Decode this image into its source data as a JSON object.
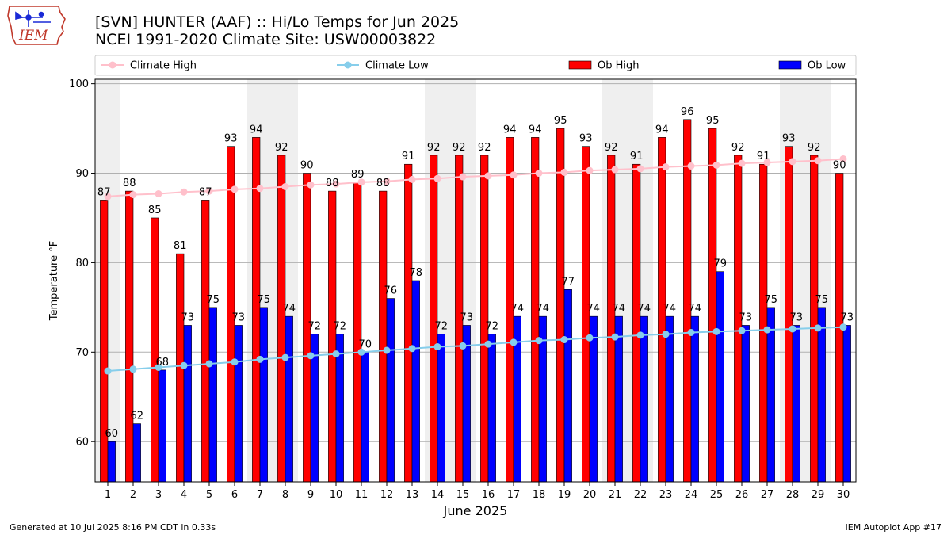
{
  "title_line1": "[SVN] HUNTER (AAF) :: Hi/Lo Temps for Jun 2025",
  "title_line2": "NCEI 1991-2020 Climate Site: USW00003822",
  "logo_text": "IEM",
  "footer_left": "Generated at 10 Jul 2025 8:16 PM CDT in 0.33s",
  "footer_right": "IEM Autoplot App #17",
  "colors": {
    "ob_high": "#ff0000",
    "ob_low": "#0000ff",
    "climate_high": "#ffc0cb",
    "climate_low": "#87ceeb",
    "weekend_shade": "#efefef",
    "grid": "#b0b0b0"
  },
  "chart_data": {
    "type": "bar",
    "xlabel": "June 2025",
    "ylabel": "Temperature °F",
    "ylim": [
      55.5,
      100.5
    ],
    "yticks": [
      60,
      70,
      80,
      90,
      100
    ],
    "grid": "horizontal",
    "legend_placement": "top",
    "categories": [
      "1",
      "2",
      "3",
      "4",
      "5",
      "6",
      "7",
      "8",
      "9",
      "10",
      "11",
      "12",
      "13",
      "14",
      "15",
      "16",
      "17",
      "18",
      "19",
      "20",
      "21",
      "22",
      "23",
      "24",
      "25",
      "26",
      "27",
      "28",
      "29",
      "30"
    ],
    "weekend_days": [
      1,
      7,
      8,
      14,
      15,
      21,
      22,
      28,
      29
    ],
    "series": [
      {
        "name": "Ob High",
        "kind": "bar",
        "values": [
          87,
          88,
          85,
          81,
          87,
          93,
          94,
          92,
          90,
          88,
          89,
          88,
          91,
          92,
          92,
          92,
          94,
          94,
          95,
          93,
          92,
          91,
          94,
          96,
          95,
          92,
          91,
          93,
          92,
          90
        ]
      },
      {
        "name": "Ob Low",
        "kind": "bar",
        "values": [
          60,
          62,
          68,
          73,
          75,
          73,
          75,
          74,
          72,
          72,
          70,
          76,
          78,
          72,
          73,
          72,
          74,
          74,
          77,
          74,
          74,
          74,
          74,
          74,
          79,
          73,
          75,
          73,
          75,
          73
        ]
      },
      {
        "name": "Climate High",
        "kind": "line",
        "values": [
          87.4,
          87.6,
          87.7,
          87.9,
          88.0,
          88.2,
          88.3,
          88.5,
          88.7,
          88.8,
          89.0,
          89.1,
          89.3,
          89.4,
          89.6,
          89.7,
          89.8,
          90.0,
          90.1,
          90.3,
          90.4,
          90.5,
          90.7,
          90.8,
          90.9,
          91.1,
          91.2,
          91.3,
          91.4,
          91.6
        ]
      },
      {
        "name": "Climate Low",
        "kind": "line",
        "values": [
          67.9,
          68.1,
          68.3,
          68.5,
          68.7,
          68.9,
          69.2,
          69.4,
          69.6,
          69.8,
          70.0,
          70.2,
          70.4,
          70.6,
          70.7,
          70.9,
          71.1,
          71.3,
          71.4,
          71.6,
          71.7,
          71.9,
          72.0,
          72.2,
          72.3,
          72.4,
          72.5,
          72.6,
          72.7,
          72.8
        ]
      }
    ]
  }
}
